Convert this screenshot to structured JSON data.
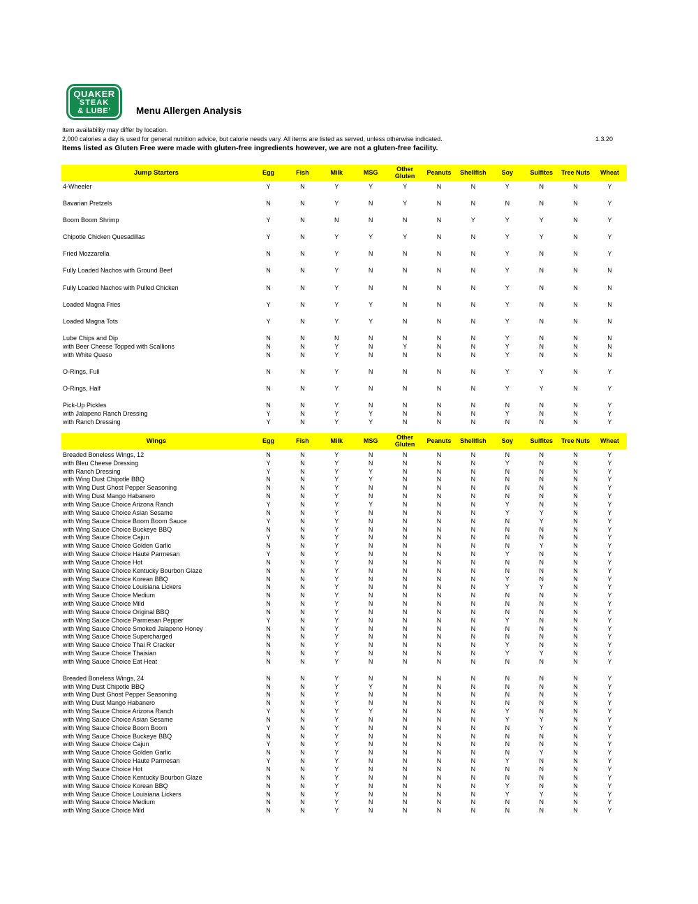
{
  "header": {
    "logo": {
      "line1": "QUAKER",
      "line2": "STEAK",
      "line3": "& LUBE’"
    },
    "title": "Menu Allergen Analysis",
    "disclaimer1": "Item availability may differ by location.",
    "disclaimer2": "2,000 calories a day is used for general nutrition advice, but calorie needs vary. All items are listed as served, unless otherwise indicated.",
    "date": "1.3.20",
    "gluten_note": "Items listed as Gluten Free were made with gluten-free ingredients however, we are not a gluten-free facility."
  },
  "colors": {
    "header_band": "#ffff00",
    "logo_green": "#158a4e"
  },
  "columns": [
    "Egg",
    "Fish",
    "Milk",
    "MSG",
    "Other Gluten",
    "Peanuts",
    "Shellfish",
    "Soy",
    "Sulfites",
    "Tree Nuts",
    "Wheat"
  ],
  "sections": [
    {
      "title": "Jump Starters",
      "rows": [
        {
          "item": "4-Wheeler",
          "sub": false,
          "v": [
            "Y",
            "N",
            "Y",
            "Y",
            "Y",
            "N",
            "N",
            "Y",
            "N",
            "N",
            "Y"
          ]
        },
        {
          "item": "Bavarian Pretzels",
          "sub": false,
          "v": [
            "N",
            "N",
            "Y",
            "N",
            "Y",
            "N",
            "N",
            "N",
            "N",
            "N",
            "Y"
          ]
        },
        {
          "item": "Boom Boom Shrimp",
          "sub": false,
          "v": [
            "Y",
            "N",
            "N",
            "N",
            "N",
            "N",
            "Y",
            "Y",
            "Y",
            "N",
            "Y"
          ]
        },
        {
          "item": "Chipotle Chicken Quesadillas",
          "sub": false,
          "v": [
            "Y",
            "N",
            "Y",
            "Y",
            "Y",
            "N",
            "N",
            "Y",
            "Y",
            "N",
            "Y"
          ]
        },
        {
          "item": "Fried Mozzarella",
          "sub": false,
          "v": [
            "N",
            "N",
            "Y",
            "N",
            "N",
            "N",
            "N",
            "Y",
            "N",
            "N",
            "Y"
          ]
        },
        {
          "item": "Fully Loaded Nachos with Ground Beef",
          "sub": false,
          "v": [
            "N",
            "N",
            "Y",
            "N",
            "N",
            "N",
            "N",
            "Y",
            "N",
            "N",
            "N"
          ]
        },
        {
          "item": "Fully Loaded Nachos with Pulled Chicken",
          "sub": false,
          "v": [
            "N",
            "N",
            "Y",
            "N",
            "N",
            "N",
            "N",
            "Y",
            "N",
            "N",
            "N"
          ]
        },
        {
          "item": "Loaded Magna Fries",
          "sub": false,
          "v": [
            "Y",
            "N",
            "Y",
            "Y",
            "N",
            "N",
            "N",
            "Y",
            "N",
            "N",
            "N"
          ]
        },
        {
          "item": "Loaded Magna Tots",
          "sub": false,
          "v": [
            "Y",
            "N",
            "Y",
            "Y",
            "N",
            "N",
            "N",
            "Y",
            "N",
            "N",
            "N"
          ]
        },
        {
          "item": "Lube Chips and Dip",
          "sub": false,
          "v": [
            "N",
            "N",
            "N",
            "N",
            "N",
            "N",
            "N",
            "Y",
            "N",
            "N",
            "N"
          ]
        },
        {
          "item": "with Beer Cheese Topped with Scallions",
          "sub": true,
          "v": [
            "N",
            "N",
            "Y",
            "N",
            "Y",
            "N",
            "N",
            "Y",
            "N",
            "N",
            "N"
          ]
        },
        {
          "item": "with White Queso",
          "sub": true,
          "v": [
            "N",
            "N",
            "Y",
            "N",
            "N",
            "N",
            "N",
            "Y",
            "N",
            "N",
            "N"
          ]
        },
        {
          "item": "O-Rings, Full",
          "sub": false,
          "v": [
            "N",
            "N",
            "Y",
            "N",
            "N",
            "N",
            "N",
            "Y",
            "Y",
            "N",
            "Y"
          ]
        },
        {
          "item": "O-Rings, Half",
          "sub": false,
          "v": [
            "N",
            "N",
            "Y",
            "N",
            "N",
            "N",
            "N",
            "Y",
            "Y",
            "N",
            "Y"
          ]
        },
        {
          "item": "Pick-Up Pickles",
          "sub": false,
          "v": [
            "N",
            "N",
            "Y",
            "N",
            "N",
            "N",
            "N",
            "N",
            "N",
            "N",
            "Y"
          ]
        },
        {
          "item": "with Jalapeno Ranch Dressing",
          "sub": true,
          "v": [
            "Y",
            "N",
            "Y",
            "Y",
            "N",
            "N",
            "N",
            "Y",
            "N",
            "N",
            "Y"
          ]
        },
        {
          "item": "with Ranch Dressing",
          "sub": true,
          "v": [
            "Y",
            "N",
            "Y",
            "Y",
            "N",
            "N",
            "N",
            "N",
            "N",
            "N",
            "Y"
          ]
        }
      ]
    },
    {
      "title": "Wings",
      "rows": [
        {
          "item": "Breaded Boneless Wings, 12",
          "sub": false,
          "v": [
            "N",
            "N",
            "Y",
            "N",
            "N",
            "N",
            "N",
            "N",
            "N",
            "N",
            "Y"
          ]
        },
        {
          "item": "with Bleu Cheese Dressing",
          "sub": true,
          "v": [
            "Y",
            "N",
            "Y",
            "N",
            "N",
            "N",
            "N",
            "Y",
            "N",
            "N",
            "Y"
          ]
        },
        {
          "item": "with Ranch Dressing",
          "sub": true,
          "v": [
            "Y",
            "N",
            "Y",
            "Y",
            "N",
            "N",
            "N",
            "N",
            "N",
            "N",
            "Y"
          ]
        },
        {
          "item": "with Wing Dust Chipotle BBQ",
          "sub": true,
          "v": [
            "N",
            "N",
            "Y",
            "Y",
            "N",
            "N",
            "N",
            "N",
            "N",
            "N",
            "Y"
          ]
        },
        {
          "item": "with Wing Dust Ghost Pepper Seasoning",
          "sub": true,
          "v": [
            "N",
            "N",
            "Y",
            "N",
            "N",
            "N",
            "N",
            "N",
            "N",
            "N",
            "Y"
          ]
        },
        {
          "item": "with Wing Dust Mango Habanero",
          "sub": true,
          "v": [
            "N",
            "N",
            "Y",
            "N",
            "N",
            "N",
            "N",
            "N",
            "N",
            "N",
            "Y"
          ]
        },
        {
          "item": "with Wing Sauce Choice Arizona Ranch",
          "sub": true,
          "v": [
            "Y",
            "N",
            "Y",
            "Y",
            "N",
            "N",
            "N",
            "Y",
            "N",
            "N",
            "Y"
          ]
        },
        {
          "item": "with Wing Sauce Choice Asian Sesame",
          "sub": true,
          "v": [
            "N",
            "N",
            "Y",
            "N",
            "N",
            "N",
            "N",
            "Y",
            "Y",
            "N",
            "Y"
          ]
        },
        {
          "item": "with Wing Sauce Choice Boom Boom Sauce",
          "sub": true,
          "v": [
            "Y",
            "N",
            "Y",
            "N",
            "N",
            "N",
            "N",
            "N",
            "Y",
            "N",
            "Y"
          ]
        },
        {
          "item": "with Wing Sauce Choice Buckeye BBQ",
          "sub": true,
          "v": [
            "N",
            "N",
            "Y",
            "N",
            "N",
            "N",
            "N",
            "N",
            "N",
            "N",
            "Y"
          ]
        },
        {
          "item": "with Wing Sauce Choice Cajun",
          "sub": true,
          "v": [
            "Y",
            "N",
            "Y",
            "N",
            "N",
            "N",
            "N",
            "N",
            "N",
            "N",
            "Y"
          ]
        },
        {
          "item": "with Wing Sauce Choice Golden Garlic",
          "sub": true,
          "v": [
            "N",
            "N",
            "Y",
            "N",
            "N",
            "N",
            "N",
            "N",
            "Y",
            "N",
            "Y"
          ]
        },
        {
          "item": "with Wing Sauce Choice Haute Parmesan",
          "sub": true,
          "v": [
            "Y",
            "N",
            "Y",
            "N",
            "N",
            "N",
            "N",
            "Y",
            "N",
            "N",
            "Y"
          ]
        },
        {
          "item": "with Wing Sauce Choice Hot",
          "sub": true,
          "v": [
            "N",
            "N",
            "Y",
            "N",
            "N",
            "N",
            "N",
            "N",
            "N",
            "N",
            "Y"
          ]
        },
        {
          "item": "with Wing Sauce Choice Kentucky Bourbon Glaze",
          "sub": true,
          "v": [
            "N",
            "N",
            "Y",
            "N",
            "N",
            "N",
            "N",
            "N",
            "N",
            "N",
            "Y"
          ]
        },
        {
          "item": "with Wing Sauce Choice Korean BBQ",
          "sub": true,
          "v": [
            "N",
            "N",
            "Y",
            "N",
            "N",
            "N",
            "N",
            "Y",
            "N",
            "N",
            "Y"
          ]
        },
        {
          "item": "with Wing Sauce Choice Louisiana Lickers",
          "sub": true,
          "v": [
            "N",
            "N",
            "Y",
            "N",
            "N",
            "N",
            "N",
            "Y",
            "Y",
            "N",
            "Y"
          ]
        },
        {
          "item": "with Wing Sauce Choice Medium",
          "sub": true,
          "v": [
            "N",
            "N",
            "Y",
            "N",
            "N",
            "N",
            "N",
            "N",
            "N",
            "N",
            "Y"
          ]
        },
        {
          "item": "with Wing Sauce Choice Mild",
          "sub": true,
          "v": [
            "N",
            "N",
            "Y",
            "N",
            "N",
            "N",
            "N",
            "N",
            "N",
            "N",
            "Y"
          ]
        },
        {
          "item": "with Wing Sauce Choice Original BBQ",
          "sub": true,
          "v": [
            "N",
            "N",
            "Y",
            "N",
            "N",
            "N",
            "N",
            "N",
            "N",
            "N",
            "Y"
          ]
        },
        {
          "item": "with Wing Sauce Choice Parmesan Pepper",
          "sub": true,
          "v": [
            "Y",
            "N",
            "Y",
            "N",
            "N",
            "N",
            "N",
            "Y",
            "N",
            "N",
            "Y"
          ]
        },
        {
          "item": "with Wing Sauce Choice Smoked Jalapeno Honey",
          "sub": true,
          "v": [
            "N",
            "N",
            "Y",
            "N",
            "N",
            "N",
            "N",
            "N",
            "N",
            "N",
            "Y"
          ]
        },
        {
          "item": "with Wing Sauce Choice Supercharged",
          "sub": true,
          "v": [
            "N",
            "N",
            "Y",
            "N",
            "N",
            "N",
            "N",
            "N",
            "N",
            "N",
            "Y"
          ]
        },
        {
          "item": "with Wing Sauce Choice Thai R Cracker",
          "sub": true,
          "v": [
            "N",
            "N",
            "Y",
            "N",
            "N",
            "N",
            "N",
            "Y",
            "N",
            "N",
            "Y"
          ]
        },
        {
          "item": "with Wing Sauce Choice Thaisian",
          "sub": true,
          "v": [
            "N",
            "N",
            "Y",
            "N",
            "N",
            "N",
            "N",
            "Y",
            "Y",
            "N",
            "Y"
          ]
        },
        {
          "item": "with Wing Sauce Choice Eat Heat",
          "sub": true,
          "v": [
            "N",
            "N",
            "Y",
            "N",
            "N",
            "N",
            "N",
            "N",
            "N",
            "N",
            "Y"
          ]
        },
        {
          "item": "Breaded Boneless Wings, 24",
          "sub": false,
          "v": [
            "N",
            "N",
            "Y",
            "N",
            "N",
            "N",
            "N",
            "N",
            "N",
            "N",
            "Y"
          ]
        },
        {
          "item": "with Wing Dust Chipotle BBQ",
          "sub": true,
          "v": [
            "N",
            "N",
            "Y",
            "Y",
            "N",
            "N",
            "N",
            "N",
            "N",
            "N",
            "Y"
          ]
        },
        {
          "item": "with Wing Dust Ghost Pepper Seasoning",
          "sub": true,
          "v": [
            "N",
            "N",
            "Y",
            "N",
            "N",
            "N",
            "N",
            "N",
            "N",
            "N",
            "Y"
          ]
        },
        {
          "item": "with Wing Dust Mango Habanero",
          "sub": true,
          "v": [
            "N",
            "N",
            "Y",
            "N",
            "N",
            "N",
            "N",
            "N",
            "N",
            "N",
            "Y"
          ]
        },
        {
          "item": "with Wing Sauce Choice Arizona Ranch",
          "sub": true,
          "v": [
            "Y",
            "N",
            "Y",
            "Y",
            "N",
            "N",
            "N",
            "Y",
            "N",
            "N",
            "Y"
          ]
        },
        {
          "item": "with Wing Sauce Choice Asian Sesame",
          "sub": true,
          "v": [
            "N",
            "N",
            "Y",
            "N",
            "N",
            "N",
            "N",
            "Y",
            "Y",
            "N",
            "Y"
          ]
        },
        {
          "item": "with Wing Sauce Choice Boom Boom",
          "sub": true,
          "v": [
            "Y",
            "N",
            "Y",
            "N",
            "N",
            "N",
            "N",
            "N",
            "Y",
            "N",
            "Y"
          ]
        },
        {
          "item": "with Wing Sauce Choice Buckeye BBQ",
          "sub": true,
          "v": [
            "N",
            "N",
            "Y",
            "N",
            "N",
            "N",
            "N",
            "N",
            "N",
            "N",
            "Y"
          ]
        },
        {
          "item": "with Wing Sauce Choice Cajun",
          "sub": true,
          "v": [
            "Y",
            "N",
            "Y",
            "N",
            "N",
            "N",
            "N",
            "N",
            "N",
            "N",
            "Y"
          ]
        },
        {
          "item": "with Wing Sauce Choice Golden Garlic",
          "sub": true,
          "v": [
            "N",
            "N",
            "Y",
            "N",
            "N",
            "N",
            "N",
            "N",
            "Y",
            "N",
            "Y"
          ]
        },
        {
          "item": "with Wing Sauce Choice Haute Parmesan",
          "sub": true,
          "v": [
            "Y",
            "N",
            "Y",
            "N",
            "N",
            "N",
            "N",
            "Y",
            "N",
            "N",
            "Y"
          ]
        },
        {
          "item": "with Wing Sauce Choice Hot",
          "sub": true,
          "v": [
            "N",
            "N",
            "Y",
            "N",
            "N",
            "N",
            "N",
            "N",
            "N",
            "N",
            "Y"
          ]
        },
        {
          "item": "with Wing Sauce Choice Kentucky Bourbon Glaze",
          "sub": true,
          "v": [
            "N",
            "N",
            "Y",
            "N",
            "N",
            "N",
            "N",
            "N",
            "N",
            "N",
            "Y"
          ]
        },
        {
          "item": "with Wing Sauce Choice Korean BBQ",
          "sub": true,
          "v": [
            "N",
            "N",
            "Y",
            "N",
            "N",
            "N",
            "N",
            "Y",
            "N",
            "N",
            "Y"
          ]
        },
        {
          "item": "with Wing Sauce Choice Louisiana Lickers",
          "sub": true,
          "v": [
            "N",
            "N",
            "Y",
            "N",
            "N",
            "N",
            "N",
            "Y",
            "Y",
            "N",
            "Y"
          ]
        },
        {
          "item": "with Wing Sauce Choice Medium",
          "sub": true,
          "v": [
            "N",
            "N",
            "Y",
            "N",
            "N",
            "N",
            "N",
            "N",
            "N",
            "N",
            "Y"
          ]
        },
        {
          "item": "with Wing Sauce Choice Mild",
          "sub": true,
          "v": [
            "N",
            "N",
            "Y",
            "N",
            "N",
            "N",
            "N",
            "N",
            "N",
            "N",
            "Y"
          ]
        }
      ]
    }
  ]
}
